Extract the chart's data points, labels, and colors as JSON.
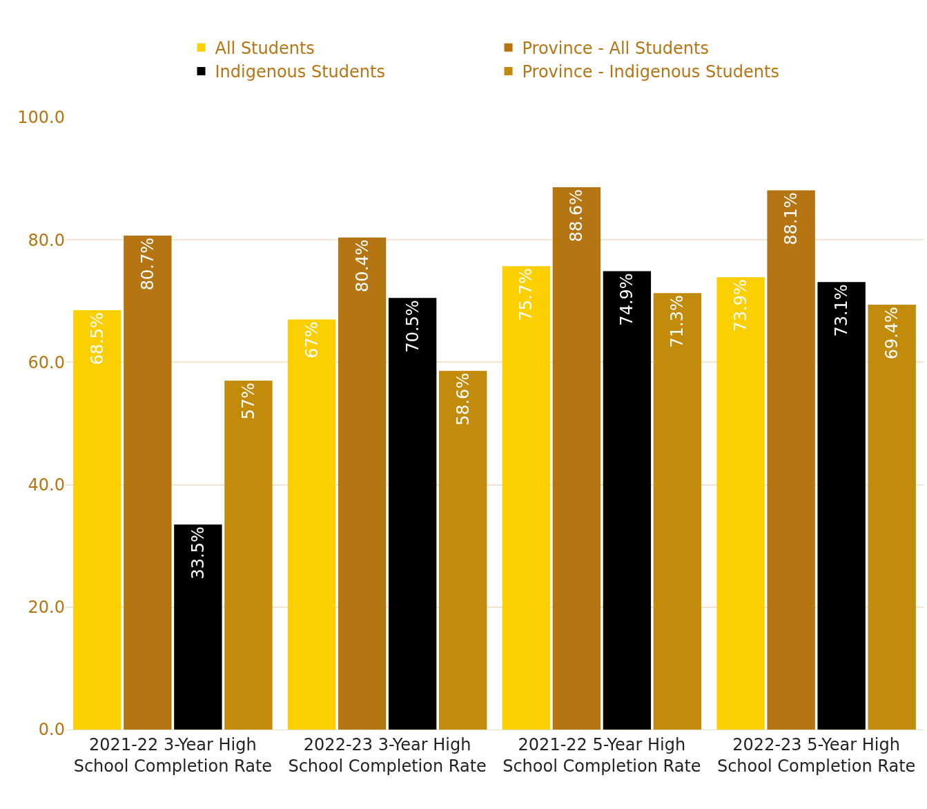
{
  "chart_data": {
    "type": "bar",
    "categories": [
      "2021-22 3-Year High School Completion Rate",
      "2022-23 3-Year High School Completion Rate",
      "2021-22 5-Year High School Completion Rate",
      "2022-23 5-Year High School Completion Rate"
    ],
    "series": [
      {
        "name": "All Students",
        "color": "#fccf00",
        "values": [
          68.5,
          67,
          75.7,
          73.9
        ],
        "value_labels": [
          "68.5%",
          "67%",
          "75.7%",
          "73.9%"
        ]
      },
      {
        "name": "Province - All Students",
        "color": "#b57512",
        "values": [
          80.7,
          80.4,
          88.6,
          88.1
        ],
        "value_labels": [
          "80.7%",
          "80.4%",
          "88.6%",
          "88.1%"
        ]
      },
      {
        "name": "Indigenous Students",
        "color": "#000000",
        "values": [
          33.5,
          70.5,
          74.9,
          73.1
        ],
        "value_labels": [
          "33.5%",
          "70.5%",
          "74.9%",
          "73.1%"
        ]
      },
      {
        "name": "Province - Indigenous Students",
        "color": "#c28b0c",
        "values": [
          57,
          58.6,
          71.3,
          69.4
        ],
        "value_labels": [
          "57%",
          "58.6%",
          "71.3%",
          "69.4%"
        ]
      }
    ],
    "ylim": [
      0,
      100
    ],
    "yticks": [
      {
        "value": 0,
        "label": "0.0"
      },
      {
        "value": 20,
        "label": "20.0"
      },
      {
        "value": 40,
        "label": "40.0"
      },
      {
        "value": 60,
        "label": "60.0"
      },
      {
        "value": 80,
        "label": "80.0"
      },
      {
        "value": 100,
        "label": "100.0"
      }
    ],
    "grid": "y",
    "legend": "top"
  }
}
